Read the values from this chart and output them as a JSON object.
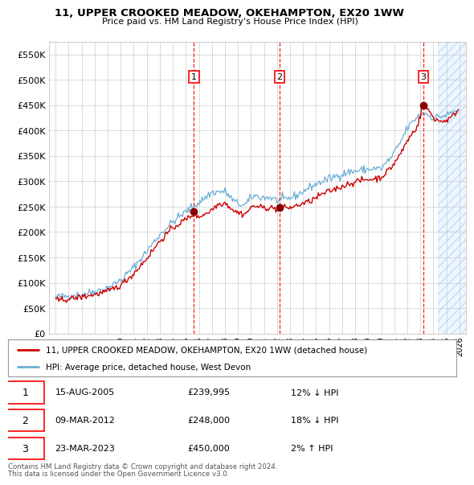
{
  "title": "11, UPPER CROOKED MEADOW, OKEHAMPTON, EX20 1WW",
  "subtitle": "Price paid vs. HM Land Registry's House Price Index (HPI)",
  "legend_line1": "11, UPPER CROOKED MEADOW, OKEHAMPTON, EX20 1WW (detached house)",
  "legend_line2": "HPI: Average price, detached house, West Devon",
  "footer1": "Contains HM Land Registry data © Crown copyright and database right 2024.",
  "footer2": "This data is licensed under the Open Government Licence v3.0.",
  "sales": [
    {
      "num": 1,
      "date": "15-AUG-2005",
      "price": "£239,995",
      "pct": "12% ↓ HPI",
      "year": 2005.62
    },
    {
      "num": 2,
      "date": "09-MAR-2012",
      "price": "£248,000",
      "pct": "18% ↓ HPI",
      "year": 2012.19
    },
    {
      "num": 3,
      "date": "23-MAR-2023",
      "price": "£450,000",
      "pct": "2% ↑ HPI",
      "year": 2023.23
    }
  ],
  "sale_prices": [
    239995,
    248000,
    450000
  ],
  "hpi_color": "#6baed6",
  "property_color": "#cc0000",
  "background_color": "#ffffff",
  "grid_color": "#cccccc",
  "ylim": [
    0,
    575000
  ],
  "yticks": [
    0,
    50000,
    100000,
    150000,
    200000,
    250000,
    300000,
    350000,
    400000,
    450000,
    500000,
    550000
  ],
  "xlim_start": 1994.5,
  "xlim_end": 2026.5,
  "hatch_start": 2024.33
}
